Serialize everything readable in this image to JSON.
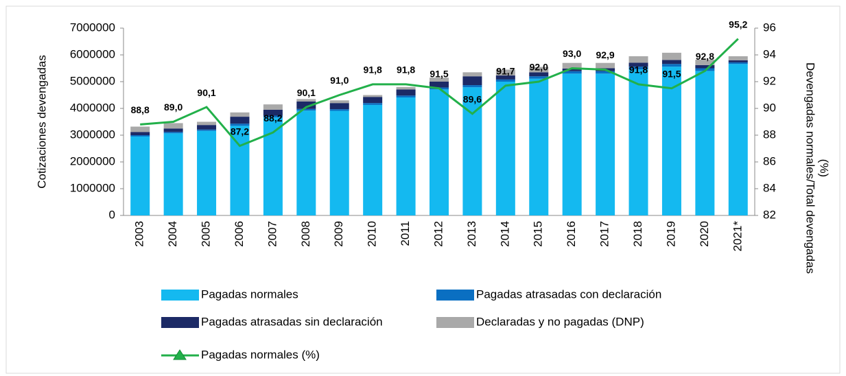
{
  "chart_data": {
    "type": "bar",
    "categories": [
      "2003",
      "2004",
      "2005",
      "2006",
      "2007",
      "2008",
      "2009",
      "2010",
      "2011",
      "2012",
      "2013",
      "2014",
      "2015",
      "2016",
      "2017",
      "2018",
      "2019",
      "2020",
      "2021*"
    ],
    "ylabel": "Cotizaciones devengadas",
    "y2label": [
      "Devengadas normales/Total devengadas",
      "(%)"
    ],
    "ylim": [
      0,
      7000000
    ],
    "yticks": [
      0,
      1000000,
      2000000,
      3000000,
      4000000,
      5000000,
      6000000,
      7000000
    ],
    "y2lim": [
      82,
      96
    ],
    "y2ticks": [
      82,
      84,
      86,
      88,
      90,
      92,
      94,
      96
    ],
    "stacked": true,
    "series": [
      {
        "name": "Pagadas normales",
        "color": "#14b9f0",
        "values": [
          2950000,
          3070000,
          3160000,
          3350000,
          3660000,
          3920000,
          3910000,
          4130000,
          4410000,
          4710000,
          4790000,
          5000000,
          5110000,
          5300000,
          5300000,
          5460000,
          5560000,
          5400000,
          5660000
        ]
      },
      {
        "name": "Pagadas atrasadas con declaración",
        "color": "#0a6fc2",
        "values": [
          50000,
          50000,
          50000,
          80000,
          70000,
          60000,
          60000,
          70000,
          70000,
          70000,
          80000,
          80000,
          90000,
          90000,
          90000,
          100000,
          100000,
          100000,
          60000
        ]
      },
      {
        "name": "Pagadas atrasadas sin declaración",
        "color": "#1c2a66",
        "values": [
          120000,
          130000,
          170000,
          260000,
          220000,
          280000,
          230000,
          230000,
          230000,
          220000,
          330000,
          150000,
          150000,
          100000,
          110000,
          150000,
          150000,
          120000,
          80000
        ]
      },
      {
        "name": "Declaradas y no pagadas (DNP)",
        "color": "#a9a9a9",
        "values": [
          200000,
          200000,
          120000,
          160000,
          200000,
          90000,
          100000,
          70000,
          90000,
          150000,
          150000,
          220000,
          200000,
          210000,
          200000,
          240000,
          270000,
          200000,
          150000
        ]
      },
      {
        "name": "Pagadas normales (%)",
        "type": "line",
        "axis": "y2",
        "color": "#22b04a",
        "values": [
          88.8,
          89.0,
          90.1,
          87.2,
          88.2,
          90.1,
          91.0,
          91.8,
          91.8,
          91.5,
          89.6,
          91.7,
          92.0,
          93.0,
          92.9,
          91.8,
          91.5,
          92.8,
          95.2
        ],
        "value_labels": [
          "88,8",
          "89,0",
          "90,1",
          "87,2",
          "88,2",
          "90,1",
          "91,0",
          "91,8",
          "91,8",
          "91,5",
          "89,6",
          "91,7",
          "92,0",
          "93,0",
          "92,9",
          "91,8",
          "91,5",
          "92,8",
          "95,2"
        ]
      }
    ]
  }
}
